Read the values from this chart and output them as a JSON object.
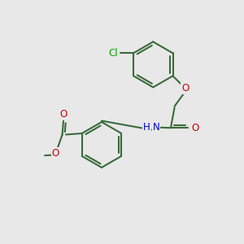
{
  "bg_color": "#e8e8e8",
  "bond_color": "#3a6b3a",
  "bond_width": 1.5,
  "atom_colors": {
    "O": "#cc0000",
    "N": "#0000cc",
    "Cl": "#00aa00"
  },
  "font_size": 8.5
}
